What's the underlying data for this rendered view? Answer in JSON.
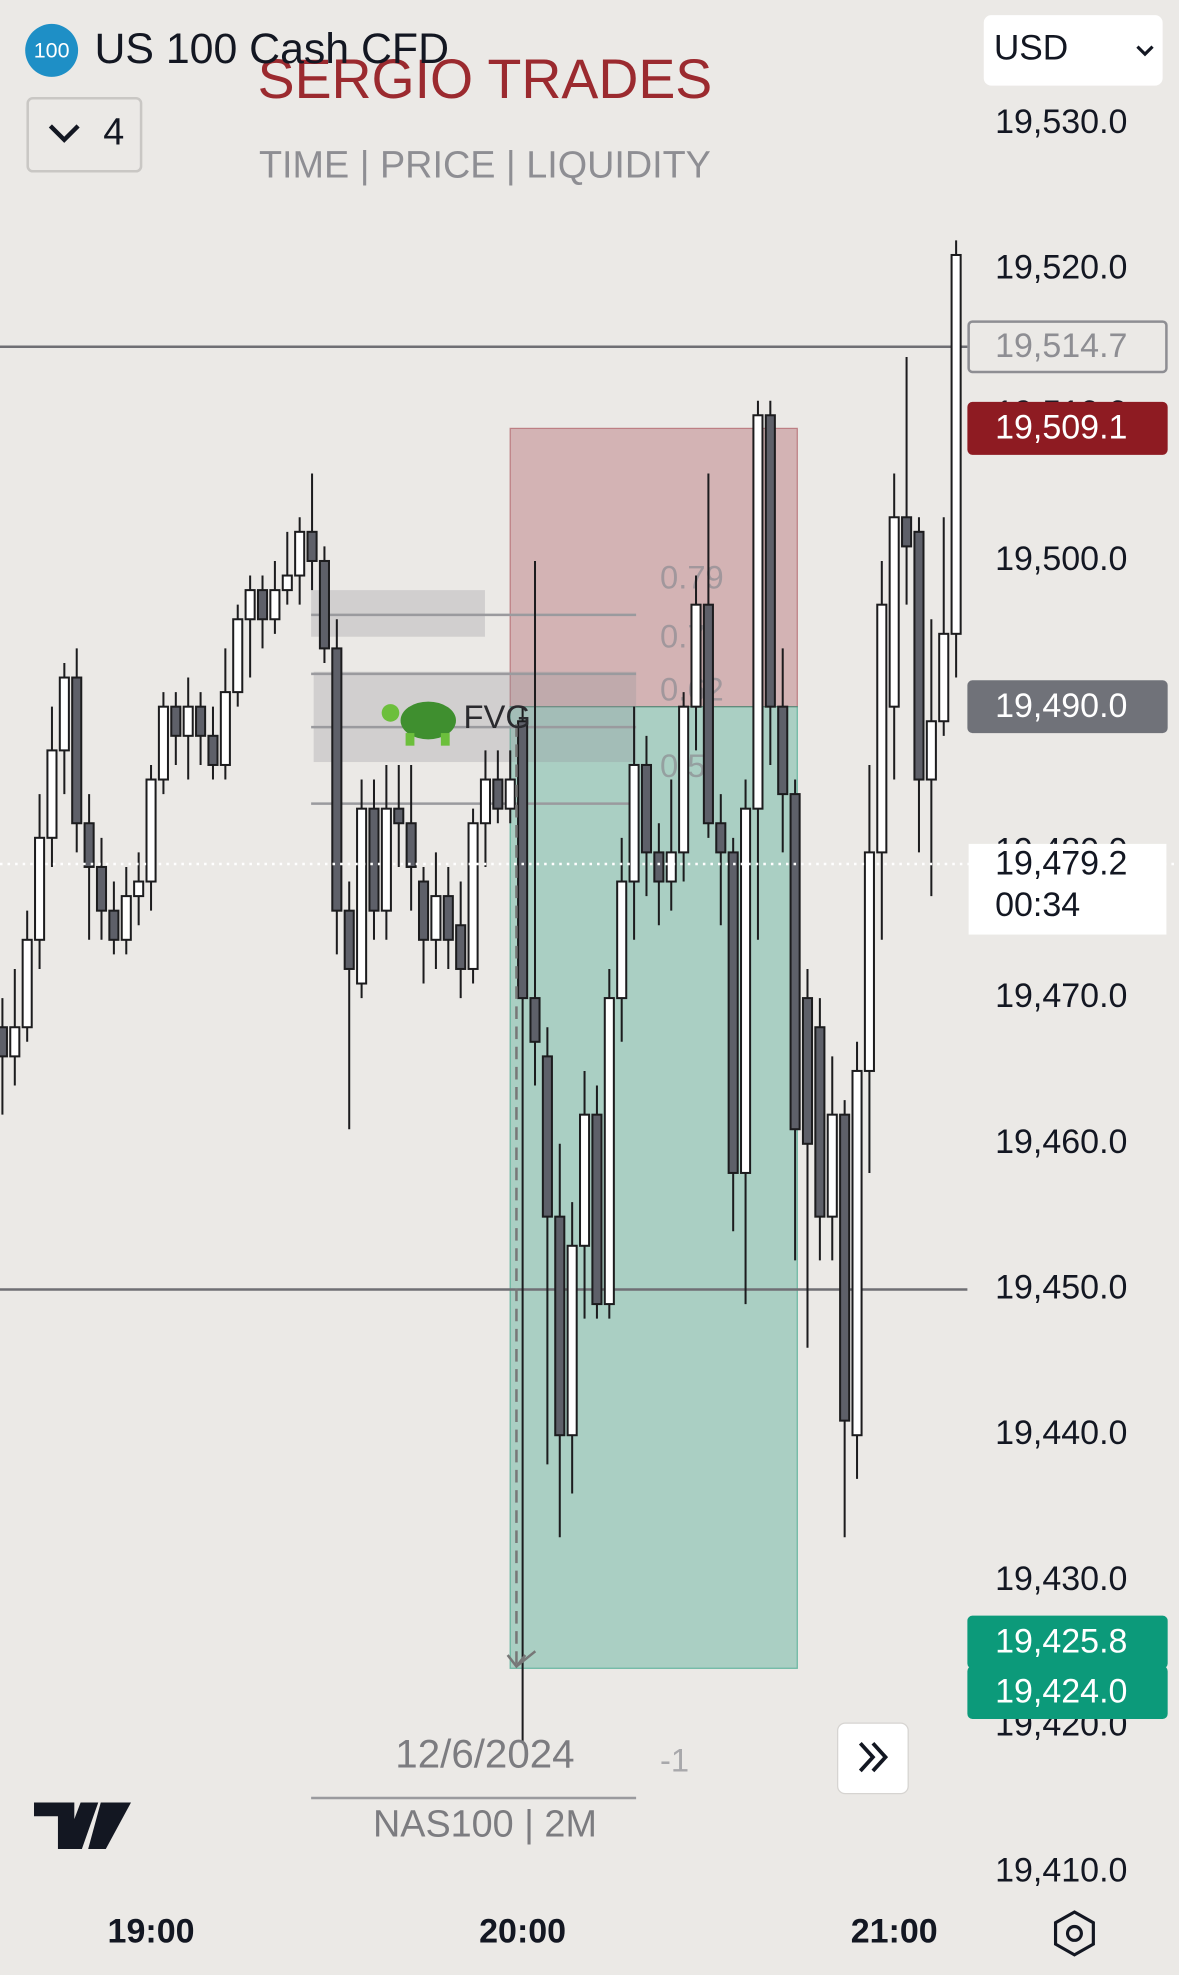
{
  "header": {
    "symbol_icon": "100",
    "symbol": "US 100 Cash CFD",
    "indicator_count": "4",
    "currency": "USD"
  },
  "watermark": {
    "title": "SERGIO TRADES",
    "subtitle": "TIME |  PRICE |  LIQUIDITY",
    "date": "12/6/2024",
    "ticker": "NAS100 | 2M"
  },
  "chart_data": {
    "type": "candlestick",
    "categories": [
      null,
      null,
      null,
      null,
      null,
      null,
      null,
      null,
      null,
      null,
      null,
      null,
      "19:00",
      null,
      null,
      null,
      null,
      null,
      null,
      null,
      null,
      null,
      null,
      null,
      null,
      null,
      null,
      null,
      null,
      null,
      null,
      null,
      null,
      null,
      null,
      null,
      null,
      null,
      null,
      null,
      null,
      null,
      "20:00",
      null,
      null,
      null,
      null,
      null,
      null,
      null,
      null,
      null,
      null,
      null,
      null,
      null,
      null,
      null,
      null,
      null,
      null,
      null,
      null,
      null,
      null,
      null,
      null,
      null,
      null,
      null,
      null,
      null,
      "21:00",
      null,
      null,
      null,
      null,
      null
    ],
    "open": [
      19468,
      19466,
      19468,
      19474,
      19481,
      19487,
      19492,
      19482,
      19479,
      19476,
      19474,
      19477,
      19478,
      19485,
      19490,
      19488,
      19490,
      19488,
      19486,
      19491,
      19496,
      19498,
      19496,
      19498,
      19499,
      19502,
      19500,
      19494,
      19476,
      19471,
      19483,
      19476,
      19483,
      19482,
      19478,
      19474,
      19477,
      19475,
      19472,
      19482,
      19485,
      19483,
      19489,
      19470,
      19466,
      19455,
      19440,
      19453,
      19462,
      19449,
      19470,
      19478,
      19486,
      19480,
      19478,
      19480,
      19490,
      19497,
      19482,
      19480,
      19458,
      19483,
      19510,
      19490,
      19484,
      19470,
      19468,
      19455,
      19462,
      19440,
      19465,
      19480,
      19490,
      19503,
      19502,
      19485,
      19489,
      19495
    ],
    "high": [
      19470,
      19472,
      19476,
      19484,
      19490,
      19493,
      19494,
      19484,
      19481,
      19478,
      19479,
      19480,
      19486,
      19491,
      19491,
      19492,
      19491,
      19490,
      19494,
      19497,
      19499,
      19499,
      19500,
      19502,
      19503,
      19506,
      19501,
      19496,
      19478,
      19485,
      19485,
      19486,
      19486,
      19486,
      19479,
      19480,
      19479,
      19478,
      19483,
      19487,
      19487,
      19487,
      19490,
      19500,
      19468,
      19460,
      19456,
      19465,
      19464,
      19472,
      19481,
      19490,
      19488,
      19482,
      19485,
      19491,
      19499,
      19506,
      19484,
      19481,
      19485,
      19511,
      19511,
      19494,
      19485,
      19472,
      19470,
      19466,
      19463,
      19467,
      19486,
      19500,
      19506,
      19514,
      19503,
      19496,
      19503,
      19522
    ],
    "low": [
      19462,
      19464,
      19467,
      19472,
      19479,
      19484,
      19480,
      19474,
      19474,
      19473,
      19473,
      19475,
      19476,
      19484,
      19486,
      19485,
      19486,
      19485,
      19485,
      19490,
      19492,
      19494,
      19495,
      19497,
      19497,
      19498,
      19493,
      19473,
      19461,
      19470,
      19474,
      19474,
      19479,
      19476,
      19471,
      19472,
      19472,
      19470,
      19471,
      19479,
      19482,
      19482,
      19419,
      19464,
      19438,
      19433,
      19436,
      19448,
      19448,
      19448,
      19467,
      19474,
      19477,
      19475,
      19476,
      19478,
      19487,
      19481,
      19475,
      19454,
      19449,
      19474,
      19486,
      19480,
      19452,
      19446,
      19452,
      19452,
      19433,
      19437,
      19458,
      19474,
      19485,
      19497,
      19480,
      19477,
      19488,
      19492
    ],
    "close": [
      19466,
      19468,
      19474,
      19481,
      19487,
      19492,
      19482,
      19479,
      19476,
      19474,
      19477,
      19478,
      19485,
      19490,
      19488,
      19490,
      19488,
      19486,
      19491,
      19496,
      19498,
      19496,
      19498,
      19499,
      19502,
      19500,
      19494,
      19476,
      19472,
      19483,
      19476,
      19483,
      19482,
      19479,
      19474,
      19477,
      19474,
      19472,
      19482,
      19485,
      19483,
      19485,
      19470,
      19467,
      19455,
      19440,
      19453,
      19462,
      19449,
      19470,
      19478,
      19486,
      19480,
      19478,
      19480,
      19490,
      19497,
      19482,
      19480,
      19458,
      19483,
      19510,
      19490,
      19484,
      19461,
      19460,
      19455,
      19462,
      19441,
      19465,
      19480,
      19497,
      19503,
      19501,
      19485,
      19489,
      19495,
      19521
    ],
    "up_color": "#ffffff",
    "down_color": "#5e6069",
    "wick_color": "#1c1c1e",
    "ylim": [
      19408.4,
      19538.5
    ],
    "yticks": [
      {
        "value": 19530,
        "label": "19,530.0"
      },
      {
        "value": 19520,
        "label": "19,520.0"
      },
      {
        "value": 19510,
        "label": "19,510.0"
      },
      {
        "value": 19500,
        "label": "19,500.0"
      },
      {
        "value": 19490,
        "label": "19,490.0"
      },
      {
        "value": 19480,
        "label": "19,480.0"
      },
      {
        "value": 19470,
        "label": "19,470.0"
      },
      {
        "value": 19460,
        "label": "19,460.0"
      },
      {
        "value": 19450,
        "label": "19,450.0"
      },
      {
        "value": 19440,
        "label": "19,440.0"
      },
      {
        "value": 19430,
        "label": "19,430.0"
      },
      {
        "value": 19420,
        "label": "19,420.0"
      },
      {
        "value": 19410,
        "label": "19,410.0"
      }
    ],
    "horizontal_lines": [
      19514.7,
      19450
    ],
    "position": {
      "stop": 19509.1,
      "entry": 19490.0,
      "target": 19424.0,
      "loss_color": "rgba(150,40,50,0.28)",
      "profit_color": "rgba(20,150,115,0.3)"
    },
    "fib_levels": [
      {
        "level": 0.79,
        "value": 19496.3
      },
      {
        "level": 0.7,
        "value": 19492.25
      },
      {
        "level": 0.62,
        "value": 19488.6
      },
      {
        "level": 0.5,
        "value": 19483.35
      },
      {
        "level": -1,
        "value": 19415.1
      }
    ],
    "fvg": {
      "label": "FVG",
      "zones": [
        [
          19498.0,
          19494.8
        ],
        [
          19492.4,
          19486.2
        ]
      ]
    },
    "current_price": {
      "value": 19479.2,
      "label": "19,479.2",
      "countdown": "00:34"
    },
    "price_labels": [
      {
        "value": 19514.7,
        "label": "19,514.7",
        "fill": "#ebe9e6",
        "text": "#8e8e93",
        "border": "#8e8e93"
      },
      {
        "value": 19509.1,
        "label": "19,509.1",
        "fill": "#8e1b22",
        "text": "#ffffff",
        "border": "#8e1b22"
      },
      {
        "value": 19490.0,
        "label": "19,490.0",
        "fill": "#707279",
        "text": "#ffffff",
        "border": "#707279"
      },
      {
        "value": 19425.8,
        "label": "19,425.8",
        "fill": "#0c9a7a",
        "text": "#ffffff",
        "border": "#0c9a7a"
      },
      {
        "value": 19424.0,
        "label": "19,424.0",
        "fill": "#0c9a7a",
        "text": "#ffffff",
        "border": "#0c9a7a"
      }
    ]
  }
}
